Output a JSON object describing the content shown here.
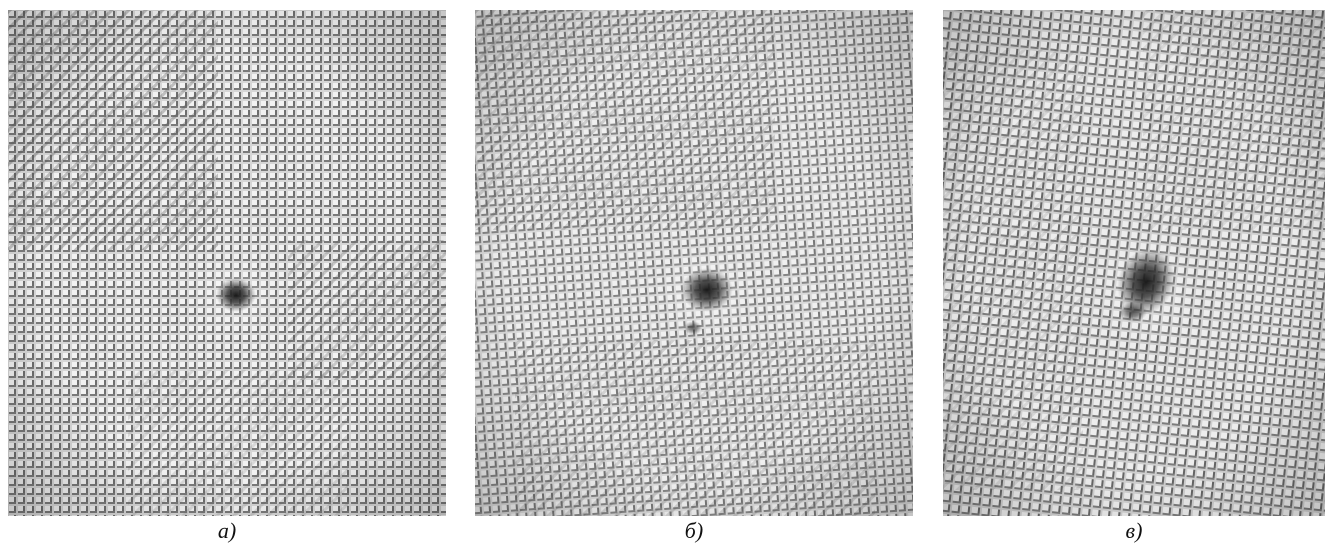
{
  "figure": {
    "panels": [
      {
        "id": "a",
        "label": "а)"
      },
      {
        "id": "b",
        "label": "б)"
      },
      {
        "id": "c",
        "label": "в)"
      }
    ]
  }
}
